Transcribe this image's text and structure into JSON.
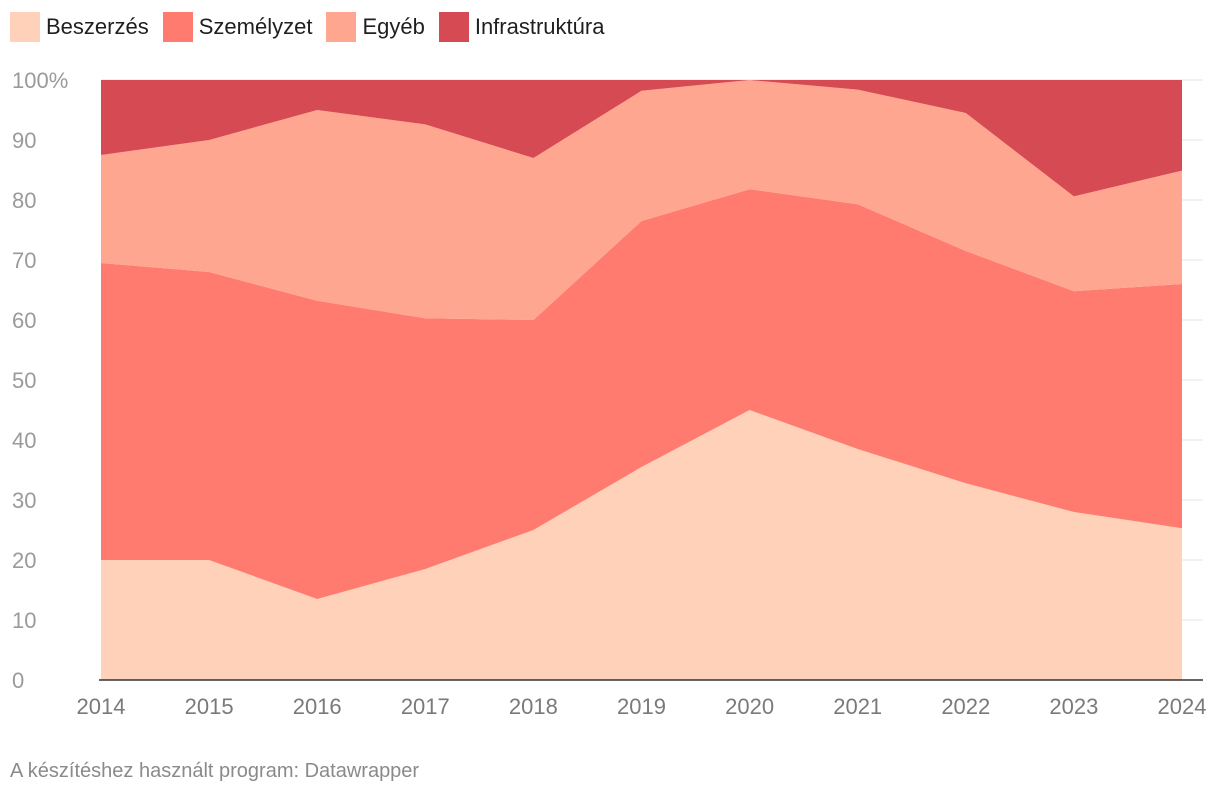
{
  "chart_data": {
    "type": "area",
    "stacked": true,
    "normalized": true,
    "x": [
      "2014",
      "2015",
      "2016",
      "2017",
      "2018",
      "2019",
      "2020",
      "2021",
      "2022",
      "2023",
      "2024"
    ],
    "series": [
      {
        "name": "Beszerzés",
        "color": "#ffd1b8",
        "values": [
          20,
          20,
          13.5,
          18.5,
          25,
          35.5,
          45,
          38.5,
          32.8,
          28,
          25.3
        ]
      },
      {
        "name": "Személyzet",
        "color": "#ff7b6f",
        "values": [
          49.5,
          48,
          49.7,
          41.8,
          35,
          41,
          36.8,
          40.8,
          38.7,
          36.8,
          40.7
        ]
      },
      {
        "name": "Egyéb",
        "color": "#ffa690",
        "values": [
          18,
          22,
          31.8,
          32.3,
          27,
          21.7,
          18.2,
          19.1,
          23,
          15.8,
          18.9
        ]
      },
      {
        "name": "Infrastruktúra",
        "color": "#d64a53",
        "values": [
          12.5,
          10,
          5,
          7.4,
          13,
          1.8,
          0,
          1.6,
          5.5,
          19.4,
          15.1
        ]
      }
    ],
    "ylim": [
      0,
      100
    ],
    "yticks": [
      {
        "value": 100,
        "label": "100%"
      },
      {
        "value": 90,
        "label": "90"
      },
      {
        "value": 80,
        "label": "80"
      },
      {
        "value": 70,
        "label": "70"
      },
      {
        "value": 60,
        "label": "60"
      },
      {
        "value": 50,
        "label": "50"
      },
      {
        "value": 40,
        "label": "40"
      },
      {
        "value": 30,
        "label": "30"
      },
      {
        "value": 20,
        "label": "20"
      },
      {
        "value": 10,
        "label": "10"
      },
      {
        "value": 0,
        "label": "0"
      }
    ],
    "grid": true,
    "legend_position": "top-left"
  },
  "source": "A készítéshez használt program: Datawrapper"
}
